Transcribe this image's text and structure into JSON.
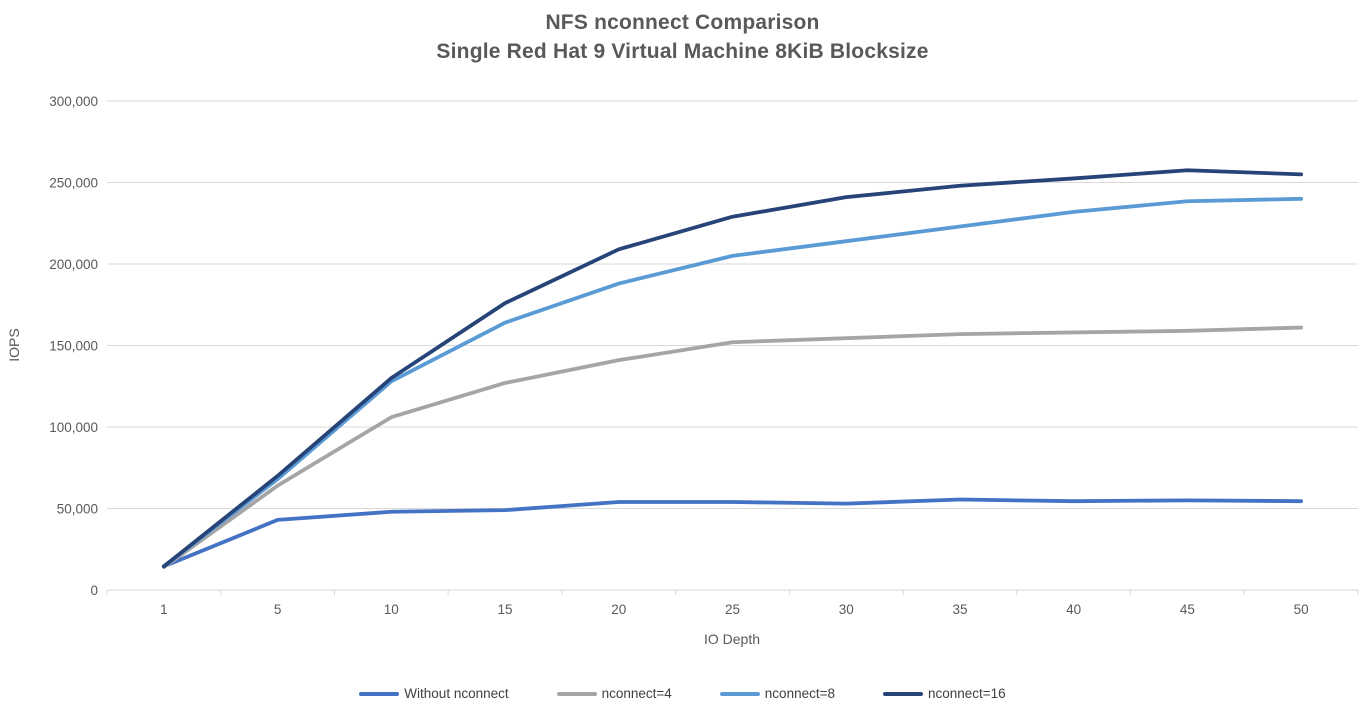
{
  "page": {
    "background_color": "#FFFFFF"
  },
  "chart_data": {
    "type": "line",
    "title": "NFS nconnect Comparison",
    "subtitle": "Single Red Hat 9 Virtual Machine 8KiB Blocksize",
    "xlabel": "IO Depth",
    "ylabel": "IOPS",
    "categories": [
      1,
      5,
      10,
      15,
      20,
      25,
      30,
      35,
      40,
      45,
      50
    ],
    "series": [
      {
        "name": "Without nconnect",
        "color": "#4472C4",
        "values": [
          14500,
          43000,
          48000,
          49000,
          54000,
          54000,
          53000,
          55500,
          54500,
          55000,
          54500
        ]
      },
      {
        "name": "nconnect=4",
        "color": "#A5A5A5",
        "values": [
          14000,
          64000,
          106000,
          127000,
          141000,
          152000,
          154500,
          157000,
          158000,
          159000,
          161000
        ]
      },
      {
        "name": "nconnect=8",
        "color": "#5B9BD5",
        "values": [
          14500,
          68000,
          128000,
          164000,
          188000,
          205000,
          214000,
          223000,
          232000,
          238500,
          240000
        ]
      },
      {
        "name": "nconnect=16",
        "color": "#264478",
        "values": [
          14500,
          70000,
          130000,
          176000,
          209000,
          229000,
          241000,
          248000,
          252500,
          257500,
          255000
        ]
      }
    ],
    "ylim": [
      0,
      300000
    ],
    "ytick_step": 50000,
    "ytick_labels": [
      "0",
      "50,000",
      "100,000",
      "150,000",
      "200,000",
      "250,000",
      "300,000"
    ],
    "grid": "horizontal",
    "gridline_color": "#D9D9D9",
    "axis_line_color": "#D6D6D6",
    "tick_label_color": "#595959",
    "legend_position": "bottom"
  }
}
